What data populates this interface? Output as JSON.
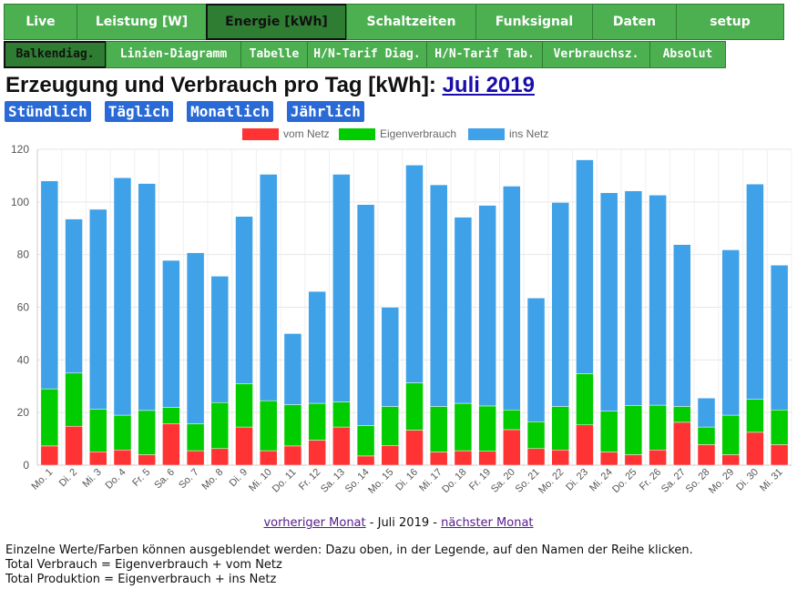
{
  "nav": {
    "tabs": [
      {
        "label": "Live"
      },
      {
        "label": "Leistung [W]"
      },
      {
        "label": "Energie [kWh]",
        "active": true
      },
      {
        "label": "Schaltzeiten"
      },
      {
        "label": "Funksignal"
      },
      {
        "label": "Daten"
      },
      {
        "label": "setup"
      }
    ],
    "subtabs": [
      {
        "label": "Balkendiag.",
        "active": true
      },
      {
        "label": "Linien-Diagramm"
      },
      {
        "label": "Tabelle"
      },
      {
        "label": "H/N-Tarif Diag."
      },
      {
        "label": "H/N-Tarif Tab."
      },
      {
        "label": "Verbrauchsz."
      },
      {
        "label": "Absolut"
      }
    ]
  },
  "heading": {
    "prefix": "Erzeugung und Verbrauch pro Tag [kWh]: ",
    "month_link": "Juli 2019"
  },
  "periods": [
    "Stündlich",
    "Täglich",
    "Monatlich",
    "Jährlich"
  ],
  "month_nav": {
    "prev": "vorheriger Monat",
    "sep1": " - ",
    "current": "Juli 2019",
    "sep2": " - ",
    "next": "nächster Monat"
  },
  "notes": [
    "Einzelne Werte/Farben können ausgeblendet werden: Dazu oben, in der Legende, auf den Namen der Reihe klicken.",
    "Total Verbrauch = Eigenverbrauch + vom Netz",
    "Total Produktion = Eigenverbrauch + ins Netz"
  ],
  "chart_data": {
    "type": "bar",
    "stacked": true,
    "categories": [
      "Mo. 1",
      "Di. 2",
      "Mi. 3",
      "Do. 4",
      "Fr. 5",
      "Sa. 6",
      "So. 7",
      "Mo. 8",
      "Di. 9",
      "Mi. 10",
      "Do. 11",
      "Fr. 12",
      "Sa. 13",
      "So. 14",
      "Mo. 15",
      "Di. 16",
      "Mi. 17",
      "Do. 18",
      "Fr. 19",
      "Sa. 20",
      "So. 21",
      "Mo. 22",
      "Di. 23",
      "Mi. 24",
      "Do. 25",
      "Fr. 26",
      "Sa. 27",
      "So. 28",
      "Mo. 29",
      "Di. 30",
      "Mi. 31"
    ],
    "series": [
      {
        "name": "vom Netz",
        "color": "#ff3333",
        "values": [
          7.3,
          14.8,
          5.1,
          5.8,
          4.0,
          15.8,
          5.5,
          6.3,
          14.5,
          5.5,
          7.3,
          9.5,
          14.5,
          3.5,
          7.5,
          13.3,
          5.0,
          5.5,
          5.3,
          13.5,
          6.3,
          5.8,
          15.3,
          5.0,
          4.0,
          5.8,
          16.3,
          7.8,
          4.0,
          12.5,
          7.8
        ]
      },
      {
        "name": "Eigenverbrauch",
        "color": "#00cc00",
        "values": [
          21.7,
          20.2,
          16.1,
          13.2,
          16.8,
          6.2,
          10.2,
          17.5,
          16.5,
          19.0,
          15.7,
          14.0,
          9.5,
          11.5,
          14.8,
          18.0,
          17.3,
          18.0,
          17.2,
          7.5,
          10.2,
          16.5,
          19.5,
          15.5,
          18.7,
          17.0,
          6.0,
          6.7,
          15.0,
          12.5,
          13.2
        ]
      },
      {
        "name": "ins Netz",
        "color": "#3fa1e8",
        "values": [
          79.0,
          58.5,
          76.0,
          90.2,
          86.2,
          55.8,
          65.0,
          48.0,
          63.5,
          86.0,
          27.0,
          42.5,
          86.5,
          84.0,
          37.7,
          82.7,
          84.2,
          70.7,
          76.2,
          85.0,
          47.0,
          77.5,
          81.2,
          83.0,
          81.5,
          79.8,
          61.5,
          11.0,
          62.8,
          81.8,
          55.0
        ]
      }
    ],
    "xlabel": "",
    "ylabel": "",
    "ylim": [
      0,
      120
    ],
    "yticks": [
      0,
      20,
      40,
      60,
      80,
      100,
      120
    ],
    "grid": true,
    "legend_position": "top-center"
  }
}
